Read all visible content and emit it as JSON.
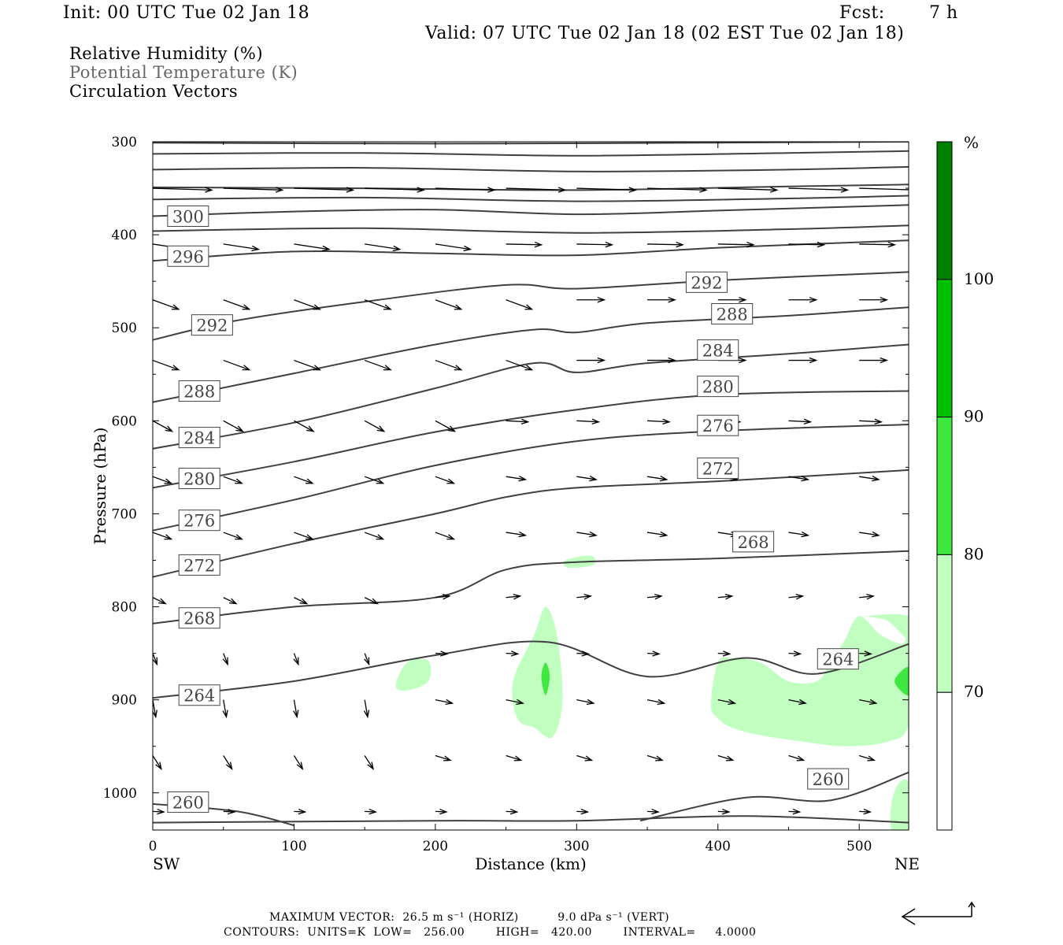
{
  "header": {
    "init": "Init: 00 UTC Tue 02 Jan 18",
    "fcst_label": "Fcst:",
    "fcst_value": "7 h",
    "valid": "Valid: 07 UTC Tue 02 Jan 18 (02 EST Tue 02 Jan 18)"
  },
  "titles": {
    "rh": "Relative Humidity (%)",
    "theta": "Potential Temperature (K)",
    "vectors": "Circulation Vectors"
  },
  "footer": {
    "max_vector": "MAXIMUM VECTOR:  26.5 m s⁻¹ (HORIZ)          9.0 dPa s⁻¹ (VERT)",
    "contours": "CONTOURS:  UNITS=K  LOW=   256.00        HIGH=   420.00        INTERVAL=     4.0000"
  },
  "colors": {
    "rh70": "#c0ffc0",
    "rh80": "#3ee83e",
    "rh90": "#00c000",
    "rh100": "#008000",
    "contour": "#404040"
  },
  "chart_data": {
    "type": "contour",
    "xlabel": "Distance (km)",
    "ylabel": "Pressure (hPa)",
    "xlim": [
      0,
      535
    ],
    "ylim": [
      1040,
      300
    ],
    "x_ticks": [
      0,
      100,
      200,
      300,
      400,
      500
    ],
    "y_ticks": [
      300,
      400,
      500,
      600,
      700,
      800,
      900,
      1000
    ],
    "left_endpoint": "SW",
    "right_endpoint": "NE",
    "colorbar": {
      "unit": "%",
      "levels": [
        70,
        80,
        90,
        100
      ],
      "colors": [
        "#ffffff",
        "#c0ffc0",
        "#3ee83e",
        "#00c000",
        "#008000"
      ]
    },
    "isentropes": [
      {
        "theta": 300,
        "label": "300",
        "label_pos": [
          25,
          380
        ],
        "points": [
          [
            0,
            380
          ],
          [
            100,
            375
          ],
          [
            200,
            373
          ],
          [
            300,
            378
          ],
          [
            400,
            374
          ],
          [
            535,
            368
          ]
        ]
      },
      {
        "theta": 296,
        "label": "296",
        "label_pos": [
          25,
          423
        ],
        "points": [
          [
            0,
            428
          ],
          [
            100,
            418
          ],
          [
            200,
            420
          ],
          [
            300,
            422
          ],
          [
            400,
            414
          ],
          [
            535,
            406
          ]
        ]
      },
      {
        "theta": 292,
        "label": "292",
        "label_pos": [
          42,
          497
        ],
        "points": [
          [
            0,
            513
          ],
          [
            60,
            492
          ],
          [
            150,
            472
          ],
          [
            250,
            454
          ],
          [
            300,
            458
          ],
          [
            400,
            449
          ],
          [
            535,
            440
          ]
        ]
      },
      {
        "theta": 292,
        "label": "292",
        "label_pos": [
          392,
          451
        ],
        "points": []
      },
      {
        "theta": 288,
        "label": "288",
        "label_pos": [
          33,
          568
        ],
        "points": [
          [
            0,
            580
          ],
          [
            100,
            549
          ],
          [
            200,
            518
          ],
          [
            270,
            502
          ],
          [
            300,
            505
          ],
          [
            350,
            495
          ],
          [
            450,
            487
          ],
          [
            535,
            478
          ]
        ]
      },
      {
        "theta": 288,
        "label": "288",
        "label_pos": [
          410,
          485
        ],
        "points": []
      },
      {
        "theta": 284,
        "label": "284",
        "label_pos": [
          33,
          618
        ],
        "points": [
          [
            0,
            630
          ],
          [
            100,
            602
          ],
          [
            200,
            565
          ],
          [
            270,
            538
          ],
          [
            300,
            548
          ],
          [
            350,
            538
          ],
          [
            450,
            528
          ],
          [
            535,
            518
          ]
        ]
      },
      {
        "theta": 284,
        "label": "284",
        "label_pos": [
          400,
          524
        ],
        "points": []
      },
      {
        "theta": 280,
        "label": "280",
        "label_pos": [
          33,
          662
        ],
        "points": [
          [
            0,
            672
          ],
          [
            100,
            644
          ],
          [
            200,
            612
          ],
          [
            300,
            588
          ],
          [
            400,
            572
          ],
          [
            535,
            568
          ]
        ]
      },
      {
        "theta": 280,
        "label": "280",
        "label_pos": [
          400,
          563
        ],
        "points": []
      },
      {
        "theta": 276,
        "label": "276",
        "label_pos": [
          33,
          707
        ],
        "points": [
          [
            0,
            718
          ],
          [
            100,
            685
          ],
          [
            200,
            648
          ],
          [
            300,
            622
          ],
          [
            400,
            611
          ],
          [
            535,
            604
          ]
        ]
      },
      {
        "theta": 276,
        "label": "276",
        "label_pos": [
          400,
          605
        ],
        "points": []
      },
      {
        "theta": 272,
        "label": "272",
        "label_pos": [
          33,
          755
        ],
        "points": [
          [
            0,
            768
          ],
          [
            100,
            732
          ],
          [
            200,
            700
          ],
          [
            250,
            682
          ],
          [
            300,
            672
          ],
          [
            400,
            665
          ],
          [
            535,
            653
          ]
        ]
      },
      {
        "theta": 272,
        "label": "272",
        "label_pos": [
          400,
          651
        ],
        "points": []
      },
      {
        "theta": 268,
        "label": "268",
        "label_pos": [
          33,
          812
        ],
        "points": [
          [
            0,
            818
          ],
          [
            100,
            800
          ],
          [
            200,
            790
          ],
          [
            250,
            760
          ],
          [
            300,
            752
          ],
          [
            400,
            748
          ],
          [
            535,
            740
          ]
        ]
      },
      {
        "theta": 268,
        "label": "268",
        "label_pos": [
          425,
          730
        ],
        "points": []
      },
      {
        "theta": 264,
        "label": "264",
        "label_pos": [
          33,
          895
        ],
        "points": [
          [
            0,
            898
          ],
          [
            100,
            880
          ],
          [
            200,
            852
          ],
          [
            280,
            838
          ],
          [
            350,
            875
          ],
          [
            420,
            855
          ],
          [
            470,
            872
          ],
          [
            535,
            840
          ]
        ]
      },
      {
        "theta": 264,
        "label": "264",
        "label_pos": [
          485,
          856
        ],
        "points": []
      },
      {
        "theta": 260,
        "label": "260",
        "label_pos": [
          25,
          1010
        ],
        "points": [
          [
            0,
            1012
          ],
          [
            60,
            1020
          ],
          [
            100,
            1035
          ]
        ]
      },
      {
        "theta": 260,
        "label": "260",
        "label_pos": [
          478,
          985
        ],
        "points": [
          [
            345,
            1030
          ],
          [
            420,
            1005
          ],
          [
            480,
            1008
          ],
          [
            535,
            978
          ]
        ]
      }
    ],
    "rh_regions": [
      {
        "rh": 70,
        "note": "moist column near 270-290 km",
        "points": [
          [
            255,
            880
          ],
          [
            270,
            830
          ],
          [
            278,
            800
          ],
          [
            286,
            830
          ],
          [
            290,
            900
          ],
          [
            283,
            940
          ],
          [
            270,
            930
          ],
          [
            258,
            920
          ]
        ]
      },
      {
        "rh": 80,
        "note": "core",
        "points": [
          [
            275,
            875
          ],
          [
            278,
            860
          ],
          [
            281,
            875
          ],
          [
            278,
            895
          ]
        ]
      },
      {
        "rh": 70,
        "note": "patch near 180-195 km",
        "points": [
          [
            172,
            885
          ],
          [
            180,
            860
          ],
          [
            195,
            858
          ],
          [
            195,
            880
          ],
          [
            180,
            890
          ]
        ]
      },
      {
        "rh": 70,
        "note": "patch near 290-310 km",
        "points": [
          [
            292,
            750
          ],
          [
            310,
            745
          ],
          [
            312,
            755
          ],
          [
            294,
            758
          ]
        ]
      },
      {
        "rh": 70,
        "note": "large area 395-535 km",
        "points": [
          [
            395,
            905
          ],
          [
            400,
            860
          ],
          [
            410,
            855
          ],
          [
            430,
            860
          ],
          [
            450,
            880
          ],
          [
            470,
            880
          ],
          [
            480,
            860
          ],
          [
            490,
            835
          ],
          [
            500,
            810
          ],
          [
            515,
            830
          ],
          [
            530,
            840
          ],
          [
            535,
            835
          ],
          [
            535,
            925
          ],
          [
            520,
            945
          ],
          [
            490,
            950
          ],
          [
            460,
            945
          ],
          [
            430,
            938
          ],
          [
            410,
            930
          ],
          [
            400,
            920
          ]
        ]
      },
      {
        "rh": 70,
        "note": "patch near 505-535 km lower",
        "points": [
          [
            505,
            810
          ],
          [
            520,
            815
          ],
          [
            535,
            835
          ],
          [
            535,
            810
          ]
        ]
      },
      {
        "rh": 80,
        "note": "small core at right edge",
        "points": [
          [
            525,
            880
          ],
          [
            535,
            865
          ],
          [
            535,
            895
          ]
        ]
      },
      {
        "rh": 70,
        "note": "near surface right edge",
        "points": [
          [
            523,
            1010
          ],
          [
            528,
            990
          ],
          [
            535,
            990
          ],
          [
            535,
            1040
          ],
          [
            523,
            1040
          ]
        ]
      }
    ],
    "vectors": [
      {
        "x": 0,
        "p": 350,
        "u": 45,
        "v": 0
      },
      {
        "x": 90,
        "p": 350,
        "u": 30,
        "v": 0
      },
      {
        "x": 150,
        "p": 352,
        "u": 50,
        "v": 0
      },
      {
        "x": 200,
        "p": 355,
        "u": 40,
        "v": 0
      },
      {
        "x": 250,
        "p": 350,
        "u": 45,
        "v": 0
      },
      {
        "x": 300,
        "p": 352,
        "u": 45,
        "v": 0
      },
      {
        "x": 370,
        "p": 345,
        "u": 40,
        "v": 0
      },
      {
        "x": 420,
        "p": 348,
        "u": 40,
        "v": 0
      },
      {
        "x": 470,
        "p": 345,
        "u": 40,
        "v": 0
      }
    ]
  }
}
